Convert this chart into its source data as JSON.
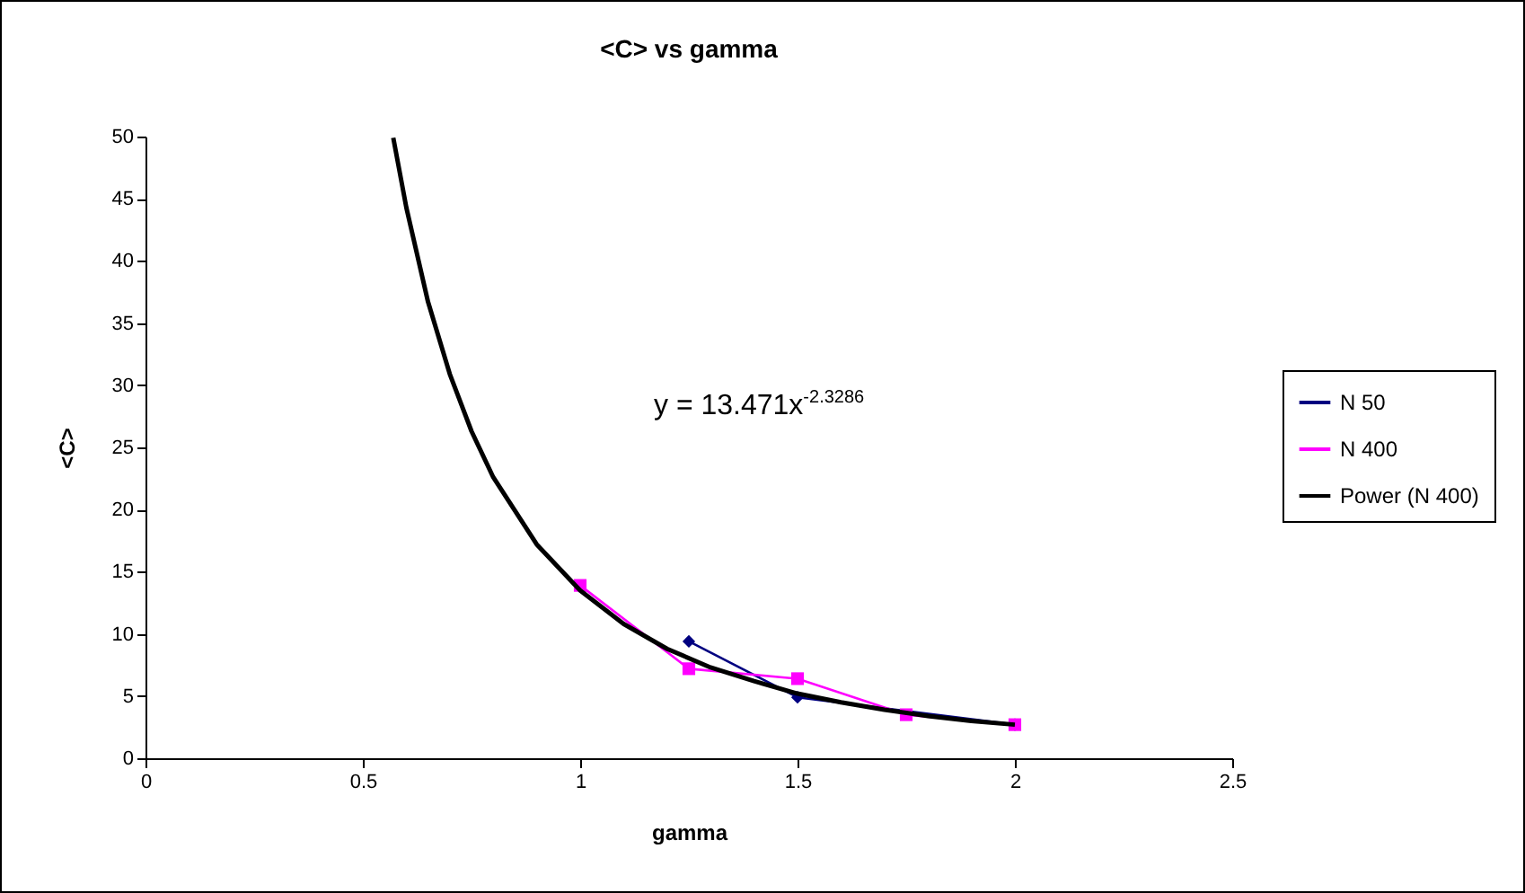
{
  "chart_data": {
    "type": "line",
    "title": "<C> vs gamma",
    "xlabel": "gamma",
    "ylabel": "<C>",
    "annotations": [
      "y = 13.471x$^{-2.3286}$"
    ],
    "xlim": [
      0,
      2.5
    ],
    "xticks": [
      0,
      0.5,
      1,
      1.5,
      2,
      2.5
    ],
    "ylim": [
      0,
      50
    ],
    "yticks": [
      0,
      5,
      10,
      15,
      20,
      25,
      30,
      35,
      40,
      45,
      50
    ],
    "grid": false,
    "legend": "right",
    "line_style": "solid",
    "series": [
      {
        "name": "N 50",
        "color": "#000080",
        "marker": "diamond",
        "x": [
          1.25,
          1.5,
          2
        ],
        "values": [
          9.4,
          4.9,
          2.7
        ]
      },
      {
        "name": "N 400",
        "color": "#ff00ff",
        "marker": "square",
        "x": [
          1,
          1.25,
          1.5,
          1.75,
          2
        ],
        "values": [
          13.9,
          7.2,
          6.4,
          3.5,
          2.7
        ]
      },
      {
        "name": "Power (N 400)",
        "color": "#000000",
        "marker": "none",
        "x": [
          0.57,
          0.6,
          0.65,
          0.7,
          0.75,
          0.8,
          0.9,
          1.0,
          1.1,
          1.2,
          1.3,
          1.4,
          1.5,
          1.6,
          1.7,
          1.8,
          1.9,
          2.0
        ],
        "values": [
          49.9,
          44.3,
          36.7,
          30.9,
          26.3,
          22.6,
          17.2,
          13.5,
          10.8,
          8.8,
          7.3,
          6.2,
          5.2,
          4.5,
          3.9,
          3.4,
          3.0,
          2.7
        ]
      }
    ]
  }
}
